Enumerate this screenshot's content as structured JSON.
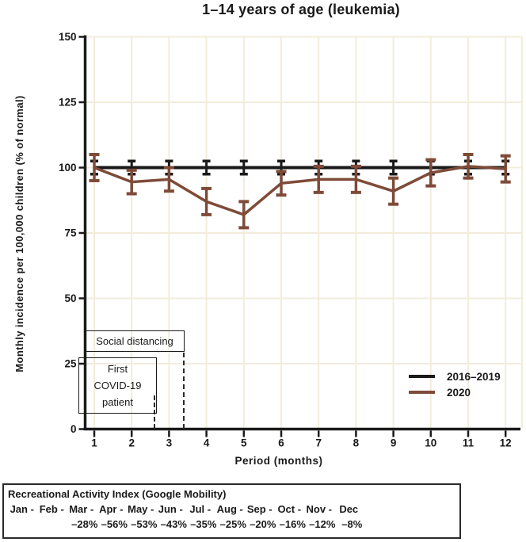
{
  "chart_data": {
    "type": "line",
    "title": "1–14 years of age (leukemia)",
    "xlabel": "Period (months)",
    "ylabel": "Monthly incidence per 100,000 children (% of normal)",
    "x": [
      1,
      2,
      3,
      4,
      5,
      6,
      7,
      8,
      9,
      10,
      11,
      12
    ],
    "xtick_labels": [
      "1",
      "2",
      "3",
      "4",
      "5",
      "6",
      "7",
      "8",
      "9",
      "10",
      "11",
      "12"
    ],
    "yticks": [
      0,
      25,
      50,
      75,
      100,
      125,
      150
    ],
    "ylim": [
      0,
      150
    ],
    "grid": true,
    "legend_position": "right-center",
    "series": [
      {
        "name": "2016–2019",
        "color": "#1a1a1a",
        "values": [
          100,
          100,
          100,
          100,
          100,
          100,
          100,
          100,
          100,
          100,
          100,
          100
        ],
        "error": [
          2.5,
          2.5,
          2.5,
          2.5,
          2.5,
          2.5,
          2.5,
          2.5,
          2.5,
          2.5,
          2.5,
          2.5
        ]
      },
      {
        "name": "2020",
        "color": "#7e4b38",
        "values": [
          100,
          94.5,
          95.5,
          87,
          82,
          94,
          95.5,
          95.5,
          91,
          98,
          100.5,
          99.5
        ],
        "error": [
          5,
          4.5,
          4.5,
          5,
          5,
          4.5,
          5,
          5,
          5,
          5,
          4.5,
          5
        ]
      }
    ]
  },
  "annotations": {
    "social_distancing_label": "Social distancing",
    "first_covid_line1": "First",
    "first_covid_line2": "COVID-19",
    "first_covid_line3": "patient"
  },
  "mobility": {
    "title": "Recreational Activity Index (Google Mobility)",
    "separator": "-",
    "months": [
      "Jan",
      "Feb",
      "Mar",
      "Apr",
      "May",
      "Jun",
      "Jul",
      "Aug",
      "Sep",
      "Oct",
      "Nov",
      "Dec"
    ],
    "values": [
      "",
      "",
      "–28%",
      "–56%",
      "–53%",
      "–43%",
      "–35%",
      "–25%",
      "–20%",
      "–16%",
      "–12%",
      "–8%"
    ]
  },
  "colors": {
    "grid": "#f2ecdb",
    "axis": "#1a1a1a",
    "series_2016_2019": "#1a1a1a",
    "series_2020": "#7e4b38"
  }
}
